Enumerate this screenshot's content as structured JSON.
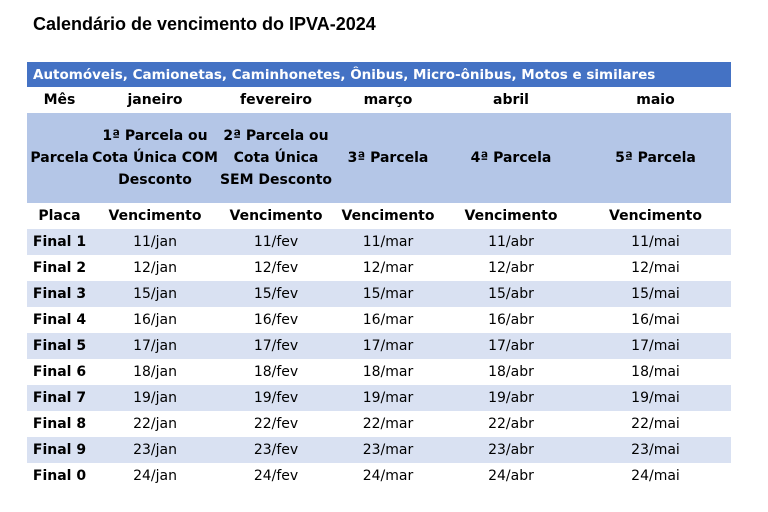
{
  "title": "Calendário de vencimento do IPVA-2024",
  "category": "Automóveis, Camionetas, Caminhonetes, Ônibus, Micro-ônibus, Motos e similares",
  "colors": {
    "header_bar": "#4472C4",
    "parcela_row": "#B4C6E7",
    "stripe": "#D9E1F2"
  },
  "months_row": [
    "Mês",
    "janeiro",
    "fevereiro",
    "março",
    "abril",
    "maio"
  ],
  "parcela_row": [
    "Parcela",
    "1ª Parcela ou Cota Única COM Desconto",
    "2ª Parcela ou Cota Única SEM Desconto",
    "3ª Parcela",
    "4ª Parcela",
    "5ª Parcela"
  ],
  "placa_row": [
    "Placa",
    "Vencimento",
    "Vencimento",
    "Vencimento",
    "Vencimento",
    "Vencimento"
  ],
  "rows": [
    [
      "Final 1",
      "11/jan",
      "11/fev",
      "11/mar",
      "11/abr",
      "11/mai"
    ],
    [
      "Final 2",
      "12/jan",
      "12/fev",
      "12/mar",
      "12/abr",
      "12/mai"
    ],
    [
      "Final 3",
      "15/jan",
      "15/fev",
      "15/mar",
      "15/abr",
      "15/mai"
    ],
    [
      "Final 4",
      "16/jan",
      "16/fev",
      "16/mar",
      "16/abr",
      "16/mai"
    ],
    [
      "Final 5",
      "17/jan",
      "17/fev",
      "17/mar",
      "17/abr",
      "17/mai"
    ],
    [
      "Final 6",
      "18/jan",
      "18/fev",
      "18/mar",
      "18/abr",
      "18/mai"
    ],
    [
      "Final 7",
      "19/jan",
      "19/fev",
      "19/mar",
      "19/abr",
      "19/mai"
    ],
    [
      "Final 8",
      "22/jan",
      "22/fev",
      "22/mar",
      "22/abr",
      "22/mai"
    ],
    [
      "Final 9",
      "23/jan",
      "23/fev",
      "23/mar",
      "23/abr",
      "23/mai"
    ],
    [
      "Final 0",
      "24/jan",
      "24/fev",
      "24/mar",
      "24/abr",
      "24/mai"
    ]
  ]
}
